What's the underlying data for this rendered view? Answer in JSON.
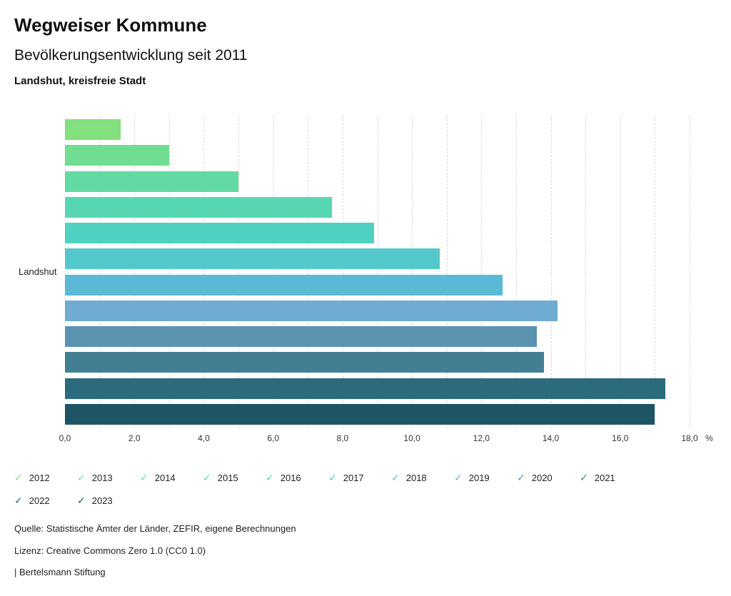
{
  "header": {
    "title": "Wegweiser Kommune",
    "subtitle": "Bevölkerungsentwicklung seit 2011",
    "region": "Landshut, kreisfreie Stadt"
  },
  "chart_data": {
    "type": "bar",
    "orientation": "horizontal",
    "group_label": "Landshut",
    "categories": [
      "2012",
      "2013",
      "2014",
      "2015",
      "2016",
      "2017",
      "2018",
      "2019",
      "2020",
      "2021",
      "2022",
      "2023"
    ],
    "values": [
      1.6,
      3.0,
      5.0,
      7.7,
      8.9,
      10.8,
      12.6,
      14.2,
      13.6,
      13.8,
      17.3,
      17.0
    ],
    "colors": [
      "#82E07E",
      "#70DD92",
      "#61DAA4",
      "#57D6B4",
      "#4FD1C1",
      "#52C8CC",
      "#5BB9D6",
      "#6FABD2",
      "#5A93B0",
      "#427F92",
      "#2C6B7D",
      "#1E5564"
    ],
    "xlim": [
      0,
      18
    ],
    "x_ticks": [
      "0,0",
      "2,0",
      "4,0",
      "6,0",
      "8,0",
      "10,0",
      "12,0",
      "14,0",
      "16,0",
      "18,0"
    ],
    "x_tick_values": [
      0,
      2,
      4,
      6,
      8,
      10,
      12,
      14,
      16,
      18
    ],
    "x_unit": "%",
    "grid": "dashed vertical, every 1.0",
    "legend_position": "bottom"
  },
  "legend": {
    "items": [
      {
        "label": "2012",
        "color": "#82E07E"
      },
      {
        "label": "2013",
        "color": "#70DD92"
      },
      {
        "label": "2014",
        "color": "#61DAA4"
      },
      {
        "label": "2015",
        "color": "#57D6B4"
      },
      {
        "label": "2016",
        "color": "#4FD1C1"
      },
      {
        "label": "2017",
        "color": "#52C8CC"
      },
      {
        "label": "2018",
        "color": "#5BB9D6"
      },
      {
        "label": "2019",
        "color": "#6FABD2"
      },
      {
        "label": "2020",
        "color": "#5A93B0"
      },
      {
        "label": "2021",
        "color": "#427F92"
      },
      {
        "label": "2022",
        "color": "#2C6B7D"
      },
      {
        "label": "2023",
        "color": "#1E5564"
      }
    ],
    "check_icon": "✓"
  },
  "footer": {
    "source": "Quelle: Statistische Ämter der Länder, ZEFIR, eigene Berechnungen",
    "license": "Lizenz: Creative Commons Zero 1.0 (CC0 1.0)",
    "brand": "| Bertelsmann Stiftung"
  }
}
